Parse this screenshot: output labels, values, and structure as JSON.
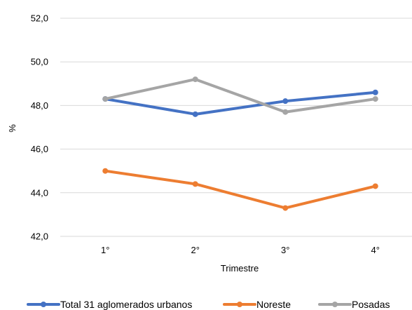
{
  "chart_data": {
    "type": "line",
    "categories": [
      "1°",
      "2°",
      "3°",
      "4°"
    ],
    "xlabel": "Trimestre",
    "ylabel": "%",
    "ylim": [
      42.0,
      52.0
    ],
    "yticks": [
      "42,0",
      "44,0",
      "46,0",
      "48,0",
      "50,0",
      "52,0"
    ],
    "grid": true,
    "legend_position": "bottom",
    "series": [
      {
        "name": "Total 31 aglomerados urbanos",
        "color": "#4472c4",
        "values": [
          48.3,
          47.6,
          48.2,
          48.6
        ]
      },
      {
        "name": "Noreste",
        "color": "#ed7d31",
        "values": [
          45.0,
          44.4,
          43.3,
          44.3
        ]
      },
      {
        "name": "Posadas",
        "color": "#a5a5a5",
        "values": [
          48.3,
          49.2,
          47.7,
          48.3
        ]
      }
    ]
  }
}
